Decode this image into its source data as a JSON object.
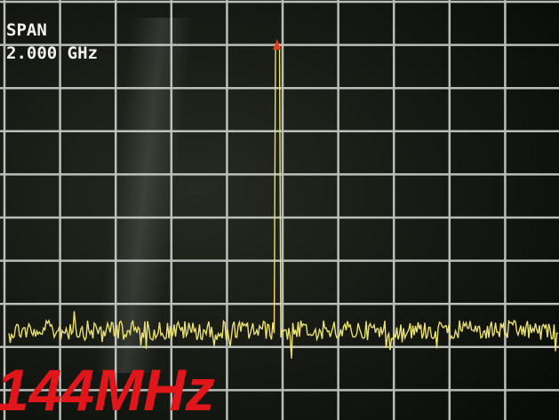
{
  "screen": {
    "span_label": "SPAN",
    "span_value": "2.000 GHz"
  },
  "caption": "144MHz"
}
